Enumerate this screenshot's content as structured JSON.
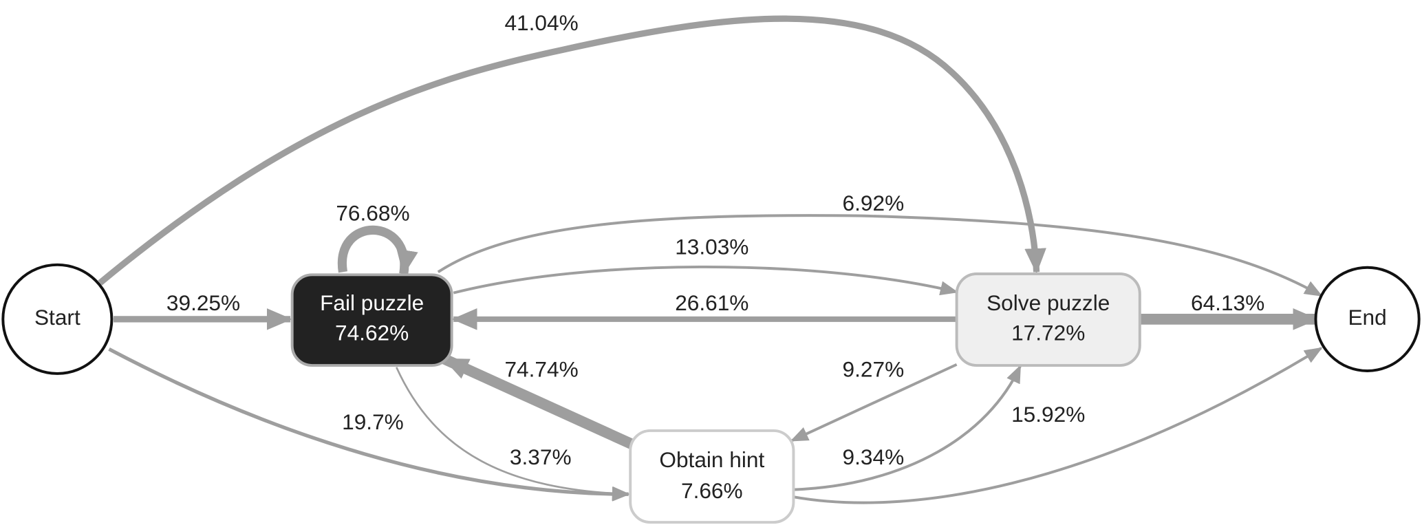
{
  "nodes": [
    {
      "label": "Start"
    },
    {
      "label": "Fail puzzle",
      "value": "74.62%"
    },
    {
      "label": "Solve puzzle",
      "value": "17.72%"
    },
    {
      "label": "Obtain hint",
      "value": "7.66%"
    },
    {
      "label": "End"
    }
  ],
  "edges": [
    {
      "from": "Start",
      "to": "Solve puzzle",
      "label": "41.04%"
    },
    {
      "from": "Start",
      "to": "Fail puzzle",
      "label": "39.25%"
    },
    {
      "from": "Start",
      "to": "Obtain hint",
      "label": "19.7%"
    },
    {
      "from": "Fail puzzle",
      "to": "Fail puzzle",
      "label": "76.68%"
    },
    {
      "from": "Fail puzzle",
      "to": "End",
      "label": "6.92%"
    },
    {
      "from": "Fail puzzle",
      "to": "Solve puzzle",
      "label": "13.03%"
    },
    {
      "from": "Solve puzzle",
      "to": "Fail puzzle",
      "label": "26.61%"
    },
    {
      "from": "Fail puzzle",
      "to": "Obtain hint",
      "label": "3.37%"
    },
    {
      "from": "Obtain hint",
      "to": "Fail puzzle",
      "label": "74.74%"
    },
    {
      "from": "Solve puzzle",
      "to": "Obtain hint",
      "label": "9.27%"
    },
    {
      "from": "Solve puzzle",
      "to": "End",
      "label": "64.13%"
    },
    {
      "from": "Obtain hint",
      "to": "Solve puzzle",
      "label": "9.34%"
    },
    {
      "from": "Obtain hint",
      "to": "End",
      "label": "15.92%"
    }
  ]
}
